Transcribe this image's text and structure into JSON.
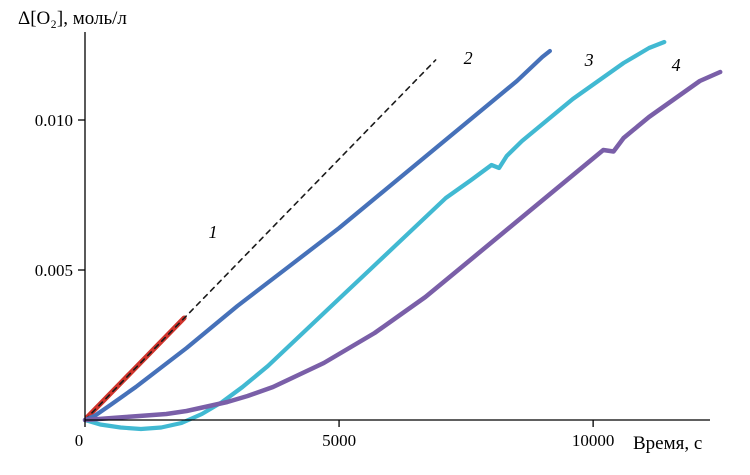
{
  "chart_data": {
    "type": "line",
    "title": "",
    "xlabel": "Время, с",
    "ylabel": "Δ[O₂], моль/л",
    "xlim": [
      0,
      12300
    ],
    "ylim": [
      0,
      0.0128
    ],
    "grid": false,
    "legend_position": "none (curves labeled inline with italic numbers 1–4)",
    "x_ticks": [
      {
        "value": 0,
        "label": "0"
      },
      {
        "value": 5000,
        "label": "5000"
      },
      {
        "value": 10000,
        "label": "10000"
      }
    ],
    "y_ticks": [
      {
        "value": 0.005,
        "label": "0.005"
      },
      {
        "value": 0.01,
        "label": "0.010"
      }
    ],
    "series": [
      {
        "name": "initial-rate-fit-red",
        "label": "",
        "color": "#d0342c",
        "style": "solid",
        "width": 5,
        "x": [
          50,
          1950
        ],
        "y": [
          0.0001,
          0.0034
        ]
      },
      {
        "name": "curve-1-dashed",
        "label": "1",
        "color": "#1a1a1a",
        "style": "dashed",
        "width": 1.6,
        "x": [
          0,
          6900
        ],
        "y": [
          0,
          0.012
        ]
      },
      {
        "name": "curve-2-blue",
        "label": "2",
        "color": "#4671b9",
        "style": "solid",
        "width": 4.2,
        "x": [
          0,
          200,
          500,
          1000,
          1500,
          2000,
          2500,
          3000,
          3500,
          4000,
          4500,
          5000,
          5500,
          6000,
          6500,
          7000,
          7500,
          8000,
          8500,
          9000,
          9150
        ],
        "y": [
          0,
          0.00015,
          0.0005,
          0.0011,
          0.00175,
          0.0024,
          0.0031,
          0.0038,
          0.00445,
          0.0051,
          0.00575,
          0.0064,
          0.0071,
          0.0078,
          0.0085,
          0.0092,
          0.0099,
          0.0106,
          0.0113,
          0.0121,
          0.0123
        ]
      },
      {
        "name": "curve-3-cyan",
        "label": "3",
        "color": "#41b9d2",
        "style": "solid",
        "width": 4.2,
        "x": [
          0,
          300,
          700,
          1100,
          1500,
          1900,
          2300,
          2700,
          3100,
          3600,
          4100,
          4600,
          5100,
          5600,
          6100,
          6600,
          7100,
          7600,
          8000,
          8150,
          8300,
          8600,
          9100,
          9600,
          10100,
          10600,
          11100,
          11400
        ],
        "y": [
          0,
          -0.00015,
          -0.00025,
          -0.0003,
          -0.00025,
          -0.0001,
          0.0002,
          0.0006,
          0.0011,
          0.0018,
          0.0026,
          0.0034,
          0.0042,
          0.005,
          0.0058,
          0.0066,
          0.0074,
          0.008,
          0.0085,
          0.0084,
          0.0088,
          0.0093,
          0.01,
          0.0107,
          0.0113,
          0.0119,
          0.0124,
          0.0126
        ]
      },
      {
        "name": "curve-4-purple",
        "label": "4",
        "color": "#7a5fa8",
        "style": "solid",
        "width": 4.5,
        "x": [
          0,
          400,
          800,
          1200,
          1600,
          2000,
          2400,
          2800,
          3200,
          3700,
          4200,
          4700,
          5200,
          5700,
          6200,
          6700,
          7200,
          7700,
          8200,
          8700,
          9200,
          9700,
          10200,
          10400,
          10600,
          11100,
          11600,
          12100,
          12500
        ],
        "y": [
          0,
          5e-05,
          0.0001,
          0.00015,
          0.0002,
          0.0003,
          0.00045,
          0.0006,
          0.0008,
          0.0011,
          0.0015,
          0.0019,
          0.0024,
          0.0029,
          0.0035,
          0.0041,
          0.0048,
          0.0055,
          0.0062,
          0.0069,
          0.0076,
          0.0083,
          0.009,
          0.00895,
          0.0094,
          0.0101,
          0.0107,
          0.0113,
          0.0116
        ]
      }
    ],
    "annotations": [
      {
        "text": "1",
        "x": 2520,
        "y": 0.00607
      },
      {
        "text": "2",
        "x": 7539,
        "y": 0.01187
      },
      {
        "text": "3",
        "x": 9921,
        "y": 0.0118
      },
      {
        "text": "4",
        "x": 11634,
        "y": 0.01163
      }
    ]
  }
}
